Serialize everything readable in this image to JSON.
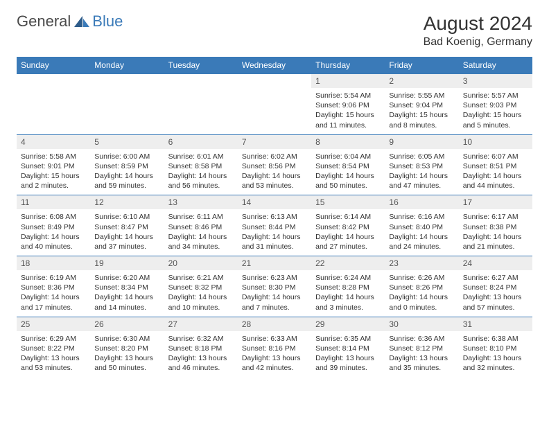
{
  "logo": {
    "text_general": "General",
    "text_blue": "Blue"
  },
  "title": {
    "month": "August 2024",
    "location": "Bad Koenig, Germany"
  },
  "colors": {
    "header_bg": "#3a7ab8",
    "header_text": "#ffffff",
    "daynum_bg": "#eeeeee",
    "border": "#3a7ab8",
    "text": "#333333"
  },
  "day_headers": [
    "Sunday",
    "Monday",
    "Tuesday",
    "Wednesday",
    "Thursday",
    "Friday",
    "Saturday"
  ],
  "weeks": [
    [
      null,
      null,
      null,
      null,
      {
        "n": "1",
        "sr": "Sunrise: 5:54 AM",
        "ss": "Sunset: 9:06 PM",
        "dl": "Daylight: 15 hours and 11 minutes."
      },
      {
        "n": "2",
        "sr": "Sunrise: 5:55 AM",
        "ss": "Sunset: 9:04 PM",
        "dl": "Daylight: 15 hours and 8 minutes."
      },
      {
        "n": "3",
        "sr": "Sunrise: 5:57 AM",
        "ss": "Sunset: 9:03 PM",
        "dl": "Daylight: 15 hours and 5 minutes."
      }
    ],
    [
      {
        "n": "4",
        "sr": "Sunrise: 5:58 AM",
        "ss": "Sunset: 9:01 PM",
        "dl": "Daylight: 15 hours and 2 minutes."
      },
      {
        "n": "5",
        "sr": "Sunrise: 6:00 AM",
        "ss": "Sunset: 8:59 PM",
        "dl": "Daylight: 14 hours and 59 minutes."
      },
      {
        "n": "6",
        "sr": "Sunrise: 6:01 AM",
        "ss": "Sunset: 8:58 PM",
        "dl": "Daylight: 14 hours and 56 minutes."
      },
      {
        "n": "7",
        "sr": "Sunrise: 6:02 AM",
        "ss": "Sunset: 8:56 PM",
        "dl": "Daylight: 14 hours and 53 minutes."
      },
      {
        "n": "8",
        "sr": "Sunrise: 6:04 AM",
        "ss": "Sunset: 8:54 PM",
        "dl": "Daylight: 14 hours and 50 minutes."
      },
      {
        "n": "9",
        "sr": "Sunrise: 6:05 AM",
        "ss": "Sunset: 8:53 PM",
        "dl": "Daylight: 14 hours and 47 minutes."
      },
      {
        "n": "10",
        "sr": "Sunrise: 6:07 AM",
        "ss": "Sunset: 8:51 PM",
        "dl": "Daylight: 14 hours and 44 minutes."
      }
    ],
    [
      {
        "n": "11",
        "sr": "Sunrise: 6:08 AM",
        "ss": "Sunset: 8:49 PM",
        "dl": "Daylight: 14 hours and 40 minutes."
      },
      {
        "n": "12",
        "sr": "Sunrise: 6:10 AM",
        "ss": "Sunset: 8:47 PM",
        "dl": "Daylight: 14 hours and 37 minutes."
      },
      {
        "n": "13",
        "sr": "Sunrise: 6:11 AM",
        "ss": "Sunset: 8:46 PM",
        "dl": "Daylight: 14 hours and 34 minutes."
      },
      {
        "n": "14",
        "sr": "Sunrise: 6:13 AM",
        "ss": "Sunset: 8:44 PM",
        "dl": "Daylight: 14 hours and 31 minutes."
      },
      {
        "n": "15",
        "sr": "Sunrise: 6:14 AM",
        "ss": "Sunset: 8:42 PM",
        "dl": "Daylight: 14 hours and 27 minutes."
      },
      {
        "n": "16",
        "sr": "Sunrise: 6:16 AM",
        "ss": "Sunset: 8:40 PM",
        "dl": "Daylight: 14 hours and 24 minutes."
      },
      {
        "n": "17",
        "sr": "Sunrise: 6:17 AM",
        "ss": "Sunset: 8:38 PM",
        "dl": "Daylight: 14 hours and 21 minutes."
      }
    ],
    [
      {
        "n": "18",
        "sr": "Sunrise: 6:19 AM",
        "ss": "Sunset: 8:36 PM",
        "dl": "Daylight: 14 hours and 17 minutes."
      },
      {
        "n": "19",
        "sr": "Sunrise: 6:20 AM",
        "ss": "Sunset: 8:34 PM",
        "dl": "Daylight: 14 hours and 14 minutes."
      },
      {
        "n": "20",
        "sr": "Sunrise: 6:21 AM",
        "ss": "Sunset: 8:32 PM",
        "dl": "Daylight: 14 hours and 10 minutes."
      },
      {
        "n": "21",
        "sr": "Sunrise: 6:23 AM",
        "ss": "Sunset: 8:30 PM",
        "dl": "Daylight: 14 hours and 7 minutes."
      },
      {
        "n": "22",
        "sr": "Sunrise: 6:24 AM",
        "ss": "Sunset: 8:28 PM",
        "dl": "Daylight: 14 hours and 3 minutes."
      },
      {
        "n": "23",
        "sr": "Sunrise: 6:26 AM",
        "ss": "Sunset: 8:26 PM",
        "dl": "Daylight: 14 hours and 0 minutes."
      },
      {
        "n": "24",
        "sr": "Sunrise: 6:27 AM",
        "ss": "Sunset: 8:24 PM",
        "dl": "Daylight: 13 hours and 57 minutes."
      }
    ],
    [
      {
        "n": "25",
        "sr": "Sunrise: 6:29 AM",
        "ss": "Sunset: 8:22 PM",
        "dl": "Daylight: 13 hours and 53 minutes."
      },
      {
        "n": "26",
        "sr": "Sunrise: 6:30 AM",
        "ss": "Sunset: 8:20 PM",
        "dl": "Daylight: 13 hours and 50 minutes."
      },
      {
        "n": "27",
        "sr": "Sunrise: 6:32 AM",
        "ss": "Sunset: 8:18 PM",
        "dl": "Daylight: 13 hours and 46 minutes."
      },
      {
        "n": "28",
        "sr": "Sunrise: 6:33 AM",
        "ss": "Sunset: 8:16 PM",
        "dl": "Daylight: 13 hours and 42 minutes."
      },
      {
        "n": "29",
        "sr": "Sunrise: 6:35 AM",
        "ss": "Sunset: 8:14 PM",
        "dl": "Daylight: 13 hours and 39 minutes."
      },
      {
        "n": "30",
        "sr": "Sunrise: 6:36 AM",
        "ss": "Sunset: 8:12 PM",
        "dl": "Daylight: 13 hours and 35 minutes."
      },
      {
        "n": "31",
        "sr": "Sunrise: 6:38 AM",
        "ss": "Sunset: 8:10 PM",
        "dl": "Daylight: 13 hours and 32 minutes."
      }
    ]
  ]
}
